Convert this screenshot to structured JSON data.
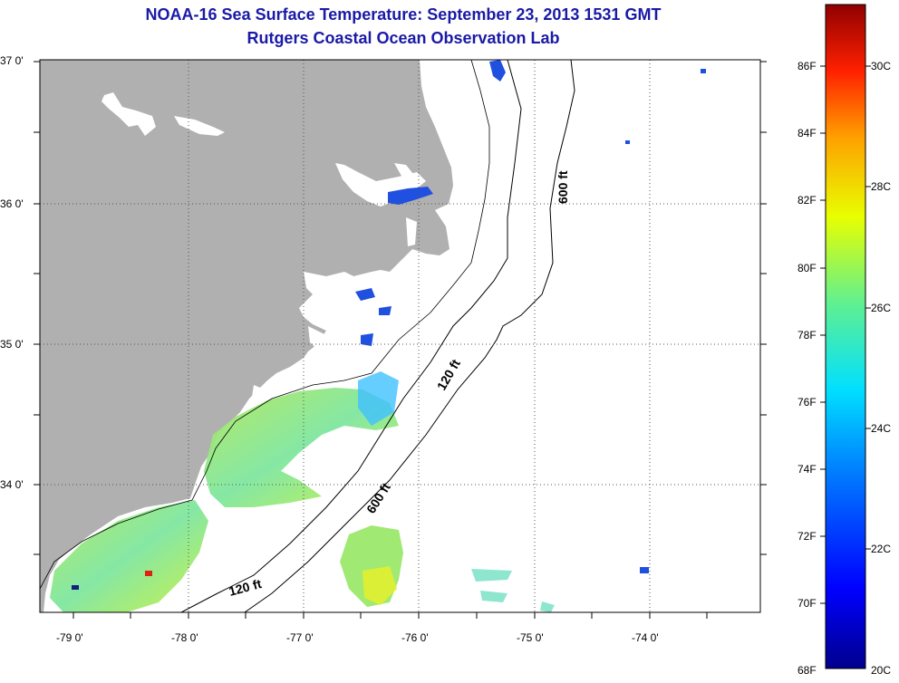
{
  "title": {
    "line1": "NOAA-16 Sea Surface Temperature:  September 23, 2013 1531 GMT",
    "line2": "Rutgers Coastal Ocean Observation Lab"
  },
  "map": {
    "lat_labels": [
      "37 0'",
      "36 0'",
      "35 0'",
      "34 0'"
    ],
    "lon_labels": [
      "-79 0'",
      "-78 0'",
      "-77 0'",
      "-76 0'",
      "-75 0'",
      "-74 0'"
    ],
    "contour_labels": {
      "depth_600_north": "600 ft",
      "depth_120_mid": "120 ft",
      "depth_600_south": "600 ft",
      "depth_120_south": "120 ft"
    },
    "colors": {
      "land": "#b0b0b0",
      "ocean": "#ffffff",
      "grid": "#000000"
    }
  },
  "colorbar": {
    "fahrenheit_labels": [
      "86F",
      "84F",
      "82F",
      "80F",
      "78F",
      "76F",
      "74F",
      "72F",
      "70F",
      "68F"
    ],
    "celsius_labels": [
      "30C",
      "28C",
      "26C",
      "24C",
      "22C",
      "20C"
    ]
  }
}
